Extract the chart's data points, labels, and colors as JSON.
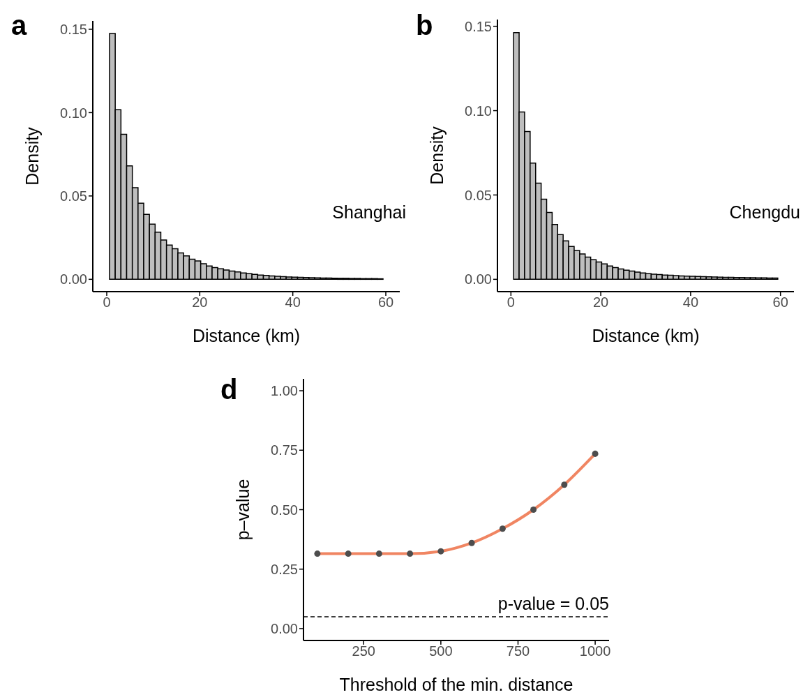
{
  "chart_data": [
    {
      "type": "histogram",
      "title": "a",
      "xlabel": "Distance (km)",
      "ylabel": "Density",
      "annotations": [
        "Shanghai"
      ],
      "color": "#bebebe",
      "bins": [
        0.6,
        1.825,
        3.05,
        4.275,
        5.5,
        6.725,
        7.95,
        9.175,
        10.4,
        11.625,
        12.85,
        14.075,
        15.3,
        16.525,
        17.75,
        18.975,
        20.2,
        21.425,
        22.65,
        23.875,
        25.1,
        26.325,
        27.55,
        28.775,
        30,
        31.225,
        32.45,
        33.675,
        34.9,
        36.125,
        37.35,
        38.575,
        39.8,
        41.025,
        42.25,
        43.475,
        44.7,
        45.925,
        47.15,
        48.375,
        49.6,
        50.825,
        52.05,
        53.275,
        54.5,
        55.725,
        56.95,
        58.175,
        59.4
      ],
      "values": [
        0.1475,
        0.1017,
        0.087,
        0.068,
        0.055,
        0.0457,
        0.039,
        0.0331,
        0.0283,
        0.0236,
        0.0205,
        0.0183,
        0.0158,
        0.0141,
        0.0121,
        0.011,
        0.0093,
        0.008,
        0.007,
        0.0063,
        0.0056,
        0.0049,
        0.0044,
        0.0038,
        0.0034,
        0.003,
        0.0025,
        0.0023,
        0.002,
        0.0018,
        0.0016,
        0.0014,
        0.0013,
        0.0012,
        0.0011,
        0.001,
        0.0009,
        0.0008,
        0.0008,
        0.0007,
        0.0006,
        0.0006,
        0.0005,
        0.0005,
        0.0004,
        0.0004,
        0.0004,
        0.0003
      ],
      "xlim": [
        -3,
        63
      ],
      "xticks": [
        0,
        20,
        40,
        60
      ],
      "ylim": [
        -0.0074,
        0.155
      ],
      "yticks": [
        {
          "value": 0,
          "label": "0.00"
        },
        {
          "value": 0.05,
          "label": "0.05"
        },
        {
          "value": 0.1,
          "label": "0.10"
        },
        {
          "value": 0.15,
          "label": "0.15"
        }
      ]
    },
    {
      "type": "histogram",
      "title": "b",
      "xlabel": "Distance (km)",
      "ylabel": "Density",
      "annotations": [
        "Chengdu"
      ],
      "color": "#bebebe",
      "bins": [
        0.6,
        1.825,
        3.05,
        4.275,
        5.5,
        6.725,
        7.95,
        9.175,
        10.4,
        11.625,
        12.85,
        14.075,
        15.3,
        16.525,
        17.75,
        18.975,
        20.2,
        21.425,
        22.65,
        23.875,
        25.1,
        26.325,
        27.55,
        28.775,
        30,
        31.225,
        32.45,
        33.675,
        34.9,
        36.125,
        37.35,
        38.575,
        39.8,
        41.025,
        42.25,
        43.475,
        44.7,
        45.925,
        47.15,
        48.375,
        49.6,
        50.825,
        52.05,
        53.275,
        54.5,
        55.725,
        56.95,
        58.175,
        59.4
      ],
      "values": [
        0.1462,
        0.0992,
        0.0876,
        0.0689,
        0.057,
        0.0475,
        0.0396,
        0.0325,
        0.0265,
        0.0228,
        0.0195,
        0.0171,
        0.015,
        0.0132,
        0.0116,
        0.0103,
        0.0091,
        0.0079,
        0.007,
        0.0061,
        0.0054,
        0.0049,
        0.0043,
        0.0038,
        0.0033,
        0.003,
        0.0028,
        0.0025,
        0.0024,
        0.0022,
        0.002,
        0.0019,
        0.0018,
        0.0017,
        0.0016,
        0.0015,
        0.0014,
        0.0013,
        0.0012,
        0.0012,
        0.0011,
        0.0011,
        0.001,
        0.001,
        0.0009,
        0.0009,
        0.0008,
        0.0008
      ],
      "xlim": [
        -3,
        63
      ],
      "xticks": [
        0,
        20,
        40,
        60
      ],
      "ylim": [
        -0.0073,
        0.154
      ],
      "yticks": [
        {
          "value": 0,
          "label": "0.00"
        },
        {
          "value": 0.05,
          "label": "0.05"
        },
        {
          "value": 0.1,
          "label": "0.10"
        },
        {
          "value": 0.15,
          "label": "0.15"
        }
      ]
    },
    {
      "type": "line",
      "title": "d",
      "xlabel": "Threshold of the min. distance",
      "ylabel": "p–value",
      "x": [
        100,
        200,
        300,
        400,
        500,
        600,
        700,
        800,
        900,
        1000
      ],
      "series": [
        {
          "type": "line",
          "color": "#f08562",
          "marker": "none",
          "values": [
            0.315,
            0.315,
            0.315,
            0.315,
            0.325,
            0.36,
            0.42,
            0.5,
            0.605,
            0.735
          ]
        },
        {
          "type": "scatter",
          "color": "#4d4d4d",
          "marker": "circle",
          "values": [
            0.315,
            0.315,
            0.315,
            0.315,
            0.325,
            0.36,
            0.42,
            0.5,
            0.605,
            0.735
          ]
        }
      ],
      "ref_lines": [
        {
          "axis": "y",
          "value": 0.05,
          "label": "p-value = 0.05",
          "line_style": "dashed",
          "color": "#000000"
        }
      ],
      "xlim": [
        55,
        1045
      ],
      "xticks": [
        250,
        500,
        750,
        1000
      ],
      "ylim": [
        -0.05,
        1.05
      ],
      "yticks": [
        {
          "value": 0,
          "label": "0.00"
        },
        {
          "value": 0.25,
          "label": "0.25"
        },
        {
          "value": 0.5,
          "label": "0.50"
        },
        {
          "value": 0.75,
          "label": "0.75"
        },
        {
          "value": 1,
          "label": "1.00"
        }
      ]
    }
  ]
}
